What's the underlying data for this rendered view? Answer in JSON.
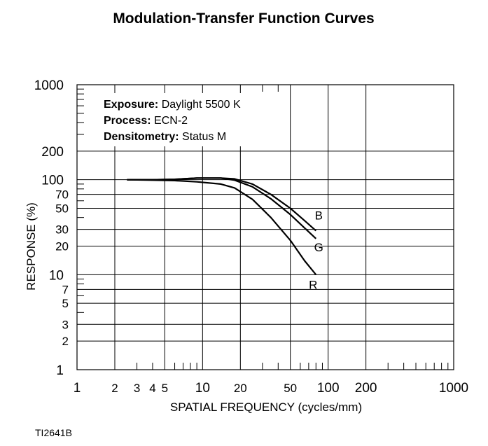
{
  "chart_data": {
    "type": "line",
    "title": "Modulation-Transfer Function Curves",
    "xlabel": "SPATIAL FREQUENCY (cycles/mm)",
    "ylabel": "RESPONSE (%)",
    "xscale": "log",
    "yscale": "log",
    "xlim": [
      1,
      1000
    ],
    "ylim": [
      1,
      1000
    ],
    "grid": true,
    "x_ticks": [
      "1",
      "2",
      "3",
      "4",
      "5",
      "10",
      "20",
      "50",
      "100",
      "200",
      "1000"
    ],
    "y_ticks": [
      "1",
      "2",
      "3",
      "5",
      "7",
      "10",
      "20",
      "30",
      "50",
      "70",
      "100",
      "200",
      "1000"
    ],
    "info": [
      {
        "key": "Exposure:",
        "value": " Daylight 5500 K"
      },
      {
        "key": "Process:",
        "value": " ECN-2"
      },
      {
        "key": "Densitometry:",
        "value": " Status M"
      }
    ],
    "series": [
      {
        "name": "B",
        "color": "#000000",
        "x": [
          2.5,
          4,
          6,
          9,
          14,
          18,
          25,
          35,
          50,
          65,
          80
        ],
        "y": [
          100,
          100,
          101,
          104,
          104,
          102,
          90,
          70,
          50,
          37,
          29
        ]
      },
      {
        "name": "G",
        "color": "#000000",
        "x": [
          2.5,
          4,
          6,
          9,
          14,
          18,
          25,
          35,
          50,
          65,
          80
        ],
        "y": [
          100,
          100,
          101,
          104,
          104,
          99,
          84,
          63,
          43,
          31,
          24
        ]
      },
      {
        "name": "R",
        "color": "#000000",
        "x": [
          2.5,
          4,
          6,
          9,
          14,
          18,
          25,
          35,
          50,
          65,
          80
        ],
        "y": [
          100,
          99,
          98,
          95,
          90,
          82,
          62,
          40,
          23,
          14,
          10
        ]
      }
    ]
  },
  "figure_code": "TI2641B"
}
